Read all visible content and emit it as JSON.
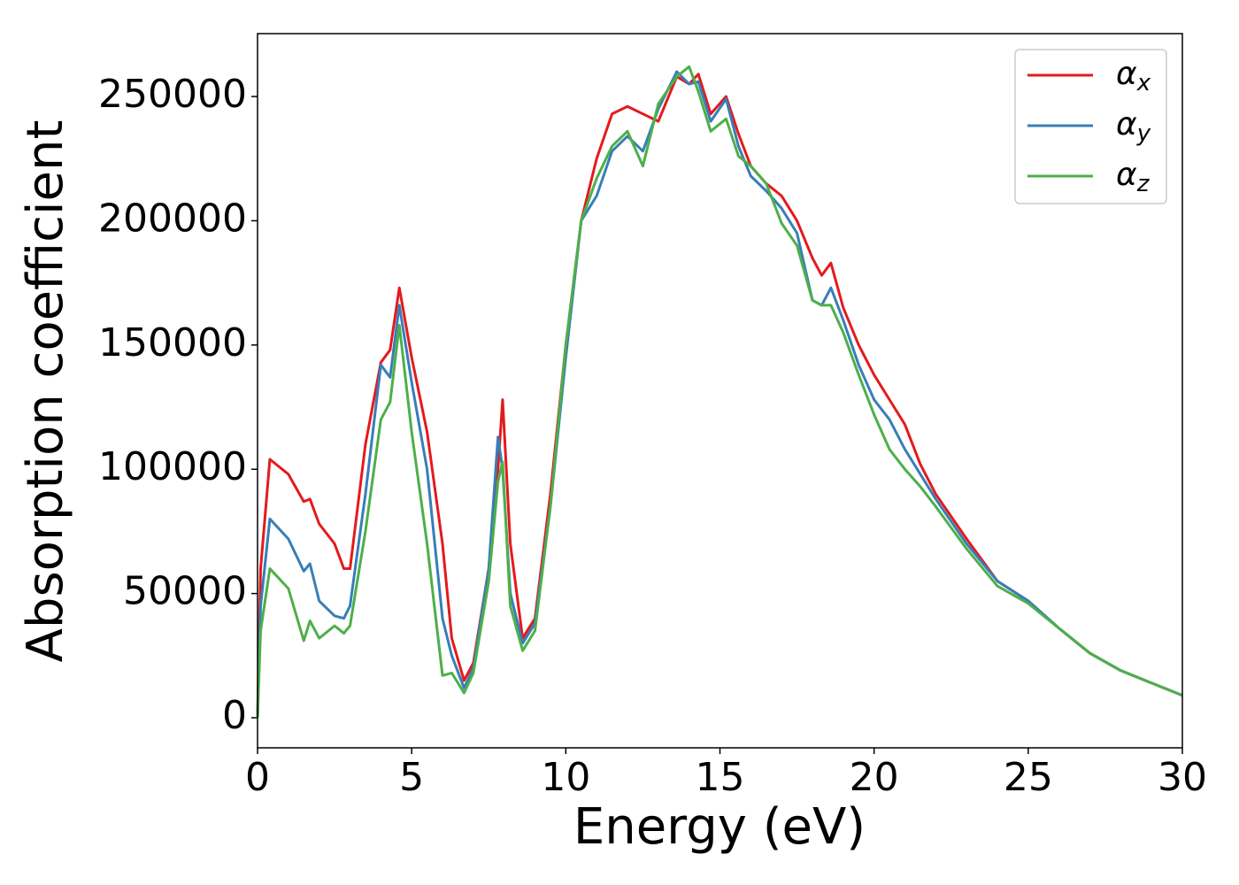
{
  "chart_data": {
    "type": "line",
    "x_label": "Energy (eV)",
    "y_label": "Absorption coefficient",
    "x": [
      0,
      0.1,
      0.4,
      1.0,
      1.5,
      1.7,
      2.0,
      2.5,
      2.8,
      3.0,
      3.5,
      4.0,
      4.3,
      4.6,
      5.0,
      5.5,
      6.0,
      6.3,
      6.7,
      7.0,
      7.5,
      7.8,
      7.95,
      8.2,
      8.6,
      9.0,
      9.5,
      10.0,
      10.5,
      11.0,
      11.5,
      12.0,
      12.5,
      13.0,
      13.6,
      14.0,
      14.3,
      14.7,
      15.2,
      15.6,
      16.0,
      16.5,
      17.0,
      17.5,
      18.0,
      18.3,
      18.6,
      19.0,
      19.5,
      20.0,
      20.5,
      21.0,
      21.5,
      22.0,
      23.0,
      24.0,
      25.0,
      26.0,
      27.0,
      28.0,
      29.0,
      30.0
    ],
    "series": [
      {
        "name": "αx",
        "color": "#e41a1c",
        "values": [
          0,
          60000,
          104000,
          98000,
          87000,
          88000,
          78000,
          70000,
          60000,
          60000,
          110000,
          143000,
          148000,
          173000,
          145000,
          115000,
          70000,
          32000,
          15000,
          22000,
          60000,
          100000,
          128000,
          70000,
          32000,
          40000,
          90000,
          150000,
          200000,
          225000,
          243000,
          246000,
          243000,
          240000,
          258000,
          255000,
          259000,
          243000,
          250000,
          235000,
          222000,
          215000,
          210000,
          200000,
          185000,
          178000,
          183000,
          165000,
          150000,
          138000,
          128000,
          118000,
          102000,
          90000,
          72000,
          55000,
          47000,
          36000,
          26000,
          19000,
          14000,
          9000
        ]
      },
      {
        "name": "αy",
        "color": "#377eb8",
        "values": [
          0,
          45000,
          80000,
          72000,
          59000,
          62000,
          47000,
          41000,
          40000,
          45000,
          90000,
          142000,
          137000,
          166000,
          135000,
          100000,
          40000,
          25000,
          12000,
          20000,
          60000,
          113000,
          100000,
          50000,
          30000,
          38000,
          85000,
          145000,
          200000,
          210000,
          228000,
          234000,
          228000,
          245000,
          260000,
          255000,
          256000,
          240000,
          249000,
          230000,
          218000,
          212000,
          205000,
          195000,
          168000,
          166000,
          173000,
          160000,
          142000,
          128000,
          120000,
          108000,
          98000,
          88000,
          70000,
          55000,
          47000,
          36000,
          26000,
          19000,
          14000,
          9000
        ]
      },
      {
        "name": "αz",
        "color": "#4daf4a",
        "values": [
          0,
          35000,
          60000,
          52000,
          31000,
          39000,
          32000,
          37000,
          34000,
          37000,
          75000,
          120000,
          127000,
          158000,
          115000,
          70000,
          17000,
          18000,
          10000,
          18000,
          55000,
          95000,
          103000,
          45000,
          27000,
          35000,
          85000,
          150000,
          200000,
          217000,
          230000,
          236000,
          222000,
          247000,
          258000,
          262000,
          252000,
          236000,
          241000,
          226000,
          222000,
          215000,
          199000,
          190000,
          168000,
          166000,
          166000,
          155000,
          138000,
          122000,
          108000,
          100000,
          93000,
          85000,
          68000,
          53000,
          46000,
          36000,
          26000,
          19000,
          14000,
          9000
        ]
      }
    ],
    "xlim": [
      0,
      30
    ],
    "xticks": [
      0,
      5,
      10,
      15,
      20,
      25,
      30
    ],
    "ylim": [
      -12100,
      275300
    ],
    "yticks": [
      0,
      50000,
      100000,
      150000,
      200000,
      250000
    ],
    "legend": "upper right",
    "grid": false
  }
}
